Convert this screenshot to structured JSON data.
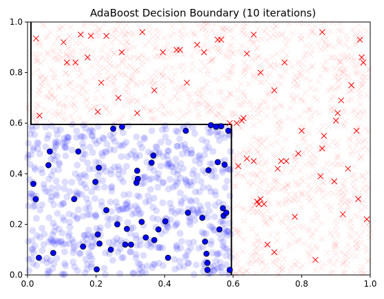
{
  "chart_data": {
    "type": "scatter",
    "title": "AdaBoost Decision Boundary (10 iterations)",
    "xlabel": "",
    "ylabel": "",
    "xlim": [
      0,
      1
    ],
    "ylim": [
      0,
      1
    ],
    "xticks": [
      "0.0",
      "0.2",
      "0.4",
      "0.6",
      "0.8",
      "1.0"
    ],
    "yticks": [
      "0.0",
      "0.2",
      "0.4",
      "0.6",
      "0.8",
      "1.0"
    ],
    "grid": false,
    "legend": "none",
    "decision_boundary": [
      [
        0.01,
        1.0
      ],
      [
        0.01,
        0.595
      ],
      [
        0.595,
        0.595
      ],
      [
        0.595,
        0.0
      ]
    ],
    "background_samples": {
      "count": 2000,
      "positive_region": "x < 0.595 and y < 0.595",
      "positive_marker": "circle",
      "negative_marker": "x",
      "positive_color": "#0000ff",
      "negative_color": "#ff0000",
      "alpha": 0.15
    },
    "series": [
      {
        "marker": "circle",
        "color": "#0000ff",
        "points": [
          [
            0.017,
            0.36
          ],
          [
            0.024,
            0.3
          ],
          [
            0.033,
            0.068
          ],
          [
            0.061,
            0.434
          ],
          [
            0.065,
            0.488
          ],
          [
            0.075,
            0.087
          ],
          [
            0.136,
            0.3
          ],
          [
            0.148,
            0.488
          ],
          [
            0.162,
            0.112
          ],
          [
            0.198,
            0.368
          ],
          [
            0.202,
            0.022
          ],
          [
            0.208,
            0.424
          ],
          [
            0.205,
            0.16
          ],
          [
            0.21,
            0.124
          ],
          [
            0.23,
            0.256
          ],
          [
            0.243,
            0.1
          ],
          [
            0.25,
            0.578
          ],
          [
            0.262,
            0.2
          ],
          [
            0.276,
            0.586
          ],
          [
            0.285,
            0.12
          ],
          [
            0.29,
            0.182
          ],
          [
            0.302,
            0.12
          ],
          [
            0.32,
            0.412
          ],
          [
            0.322,
            0.38
          ],
          [
            0.318,
            0.364
          ],
          [
            0.333,
            0.21
          ],
          [
            0.345,
            0.148
          ],
          [
            0.362,
            0.444
          ],
          [
            0.367,
            0.472
          ],
          [
            0.37,
            0.138
          ],
          [
            0.382,
            0.18
          ],
          [
            0.402,
            0.212
          ],
          [
            0.41,
            0.068
          ],
          [
            0.462,
            0.57
          ],
          [
            0.468,
            0.246
          ],
          [
            0.51,
            0.226
          ],
          [
            0.518,
            0.132
          ],
          [
            0.522,
            0.084
          ],
          [
            0.525,
            0.048
          ],
          [
            0.525,
            0.02
          ],
          [
            0.528,
            0.414
          ],
          [
            0.535,
            0.592
          ],
          [
            0.55,
            0.586
          ],
          [
            0.555,
            0.446
          ],
          [
            0.56,
            0.18
          ],
          [
            0.565,
            0.588
          ],
          [
            0.57,
            0.264
          ],
          [
            0.572,
            0.234
          ],
          [
            0.575,
            0.436
          ],
          [
            0.58,
            0.246
          ],
          [
            0.586,
            0.57
          ],
          [
            0.59,
            0.02
          ]
        ]
      },
      {
        "marker": "x",
        "color": "#ff0000",
        "points": [
          [
            0.025,
            0.935
          ],
          [
            0.035,
            0.63
          ],
          [
            0.105,
            0.92
          ],
          [
            0.115,
            0.84
          ],
          [
            0.14,
            0.84
          ],
          [
            0.155,
            0.95
          ],
          [
            0.175,
            0.86
          ],
          [
            0.185,
            0.945
          ],
          [
            0.205,
            0.645
          ],
          [
            0.215,
            0.76
          ],
          [
            0.23,
            0.945
          ],
          [
            0.265,
            0.7
          ],
          [
            0.275,
            0.88
          ],
          [
            0.32,
            0.64
          ],
          [
            0.335,
            0.96
          ],
          [
            0.37,
            0.73
          ],
          [
            0.395,
            0.88
          ],
          [
            0.435,
            0.89
          ],
          [
            0.445,
            0.89
          ],
          [
            0.465,
            0.76
          ],
          [
            0.495,
            0.91
          ],
          [
            0.515,
            0.88
          ],
          [
            0.555,
            0.93
          ],
          [
            0.565,
            0.93
          ],
          [
            0.59,
            0.6
          ],
          [
            0.61,
            0.6
          ],
          [
            0.625,
            0.61
          ],
          [
            0.63,
            0.62
          ],
          [
            0.64,
            0.875
          ],
          [
            0.615,
            0.43
          ],
          [
            0.64,
            0.46
          ],
          [
            0.66,
            0.45
          ],
          [
            0.67,
            0.29
          ],
          [
            0.675,
            0.28
          ],
          [
            0.68,
            0.3
          ],
          [
            0.69,
            0.28
          ],
          [
            0.7,
            0.12
          ],
          [
            0.72,
            0.09
          ],
          [
            0.73,
            0.42
          ],
          [
            0.74,
            0.45
          ],
          [
            0.755,
            0.45
          ],
          [
            0.78,
            0.23
          ],
          [
            0.79,
            0.48
          ],
          [
            0.8,
            0.57
          ],
          [
            0.84,
            0.06
          ],
          [
            0.855,
            0.39
          ],
          [
            0.86,
            0.5
          ],
          [
            0.865,
            0.55
          ],
          [
            0.895,
            0.37
          ],
          [
            0.9,
            0.61
          ],
          [
            0.905,
            0.64
          ],
          [
            0.915,
            0.69
          ],
          [
            0.92,
            0.24
          ],
          [
            0.935,
            0.42
          ],
          [
            0.945,
            0.75
          ],
          [
            0.96,
            0.57
          ],
          [
            0.965,
            0.3
          ],
          [
            0.97,
            0.93
          ],
          [
            0.975,
            0.86
          ],
          [
            0.98,
            0.84
          ],
          [
            0.99,
            0.22
          ],
          [
            0.75,
            0.84
          ],
          [
            0.72,
            0.73
          ],
          [
            0.68,
            0.8
          ],
          [
            0.66,
            0.95
          ],
          [
            0.86,
            0.96
          ]
        ]
      }
    ]
  }
}
